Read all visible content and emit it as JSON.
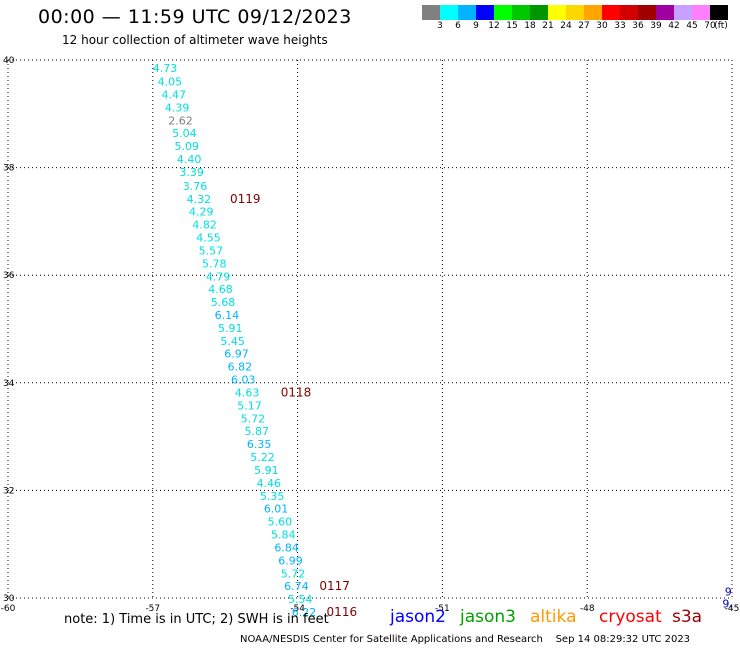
{
  "title": "00:00 — 11:59 UTC 09/12/2023",
  "subtitle": "12 hour collection of altimeter wave heights",
  "colorbar": {
    "unit": "(ft)",
    "ticks": [
      "3",
      "6",
      "9",
      "12",
      "15",
      "18",
      "21",
      "24",
      "27",
      "30",
      "33",
      "36",
      "39",
      "42",
      "45",
      "70"
    ],
    "colors": [
      "#808080",
      "#00ffff",
      "#00b4ff",
      "#0000ff",
      "#00ff00",
      "#00c800",
      "#009600",
      "#ffff00",
      "#ffd700",
      "#ffa500",
      "#ff0000",
      "#d20000",
      "#a00000",
      "#a000a0",
      "#c8a0ff",
      "#ff80ff",
      "#000000"
    ]
  },
  "chart_data": {
    "type": "scatter",
    "xlim": [
      -60,
      -45
    ],
    "ylim": [
      30,
      40
    ],
    "x_ticks": [
      -60,
      -57,
      -54,
      -51,
      -48,
      -45
    ],
    "y_ticks": [
      30,
      32,
      34,
      36,
      38,
      40
    ],
    "x_tick_labels": [
      "-60",
      "-57",
      "-54",
      "-51",
      "-48",
      "-45"
    ],
    "y_tick_labels": [
      "30",
      "32",
      "34",
      "36",
      "38",
      "40"
    ],
    "grid": true,
    "track_points": [
      {
        "lon": -57.0,
        "lat": 39.85,
        "label": "4.73",
        "color": "#00e0e0"
      },
      {
        "lon": -56.9,
        "lat": 39.6,
        "label": "4.05",
        "color": "#00e0e0"
      },
      {
        "lon": -56.82,
        "lat": 39.36,
        "label": "4.47",
        "color": "#00e0e0"
      },
      {
        "lon": -56.75,
        "lat": 39.12,
        "label": "4.39",
        "color": "#00e0e0"
      },
      {
        "lon": -56.68,
        "lat": 38.88,
        "label": "2.62",
        "color": "#808080"
      },
      {
        "lon": -56.6,
        "lat": 38.64,
        "label": "5.04",
        "color": "#00e0e0"
      },
      {
        "lon": -56.55,
        "lat": 38.4,
        "label": "5.09",
        "color": "#00e0e0"
      },
      {
        "lon": -56.5,
        "lat": 38.16,
        "label": "4.40",
        "color": "#00e0e0"
      },
      {
        "lon": -56.45,
        "lat": 37.92,
        "label": "3.39",
        "color": "#00e0e0"
      },
      {
        "lon": -56.38,
        "lat": 37.66,
        "label": "3.76",
        "color": "#00e0e0"
      },
      {
        "lon": -56.3,
        "lat": 37.42,
        "label": "4.32",
        "color": "#00e0e0"
      },
      {
        "lon": -56.25,
        "lat": 37.18,
        "label": "4.29",
        "color": "#00e0e0"
      },
      {
        "lon": -56.18,
        "lat": 36.94,
        "label": "4.82",
        "color": "#00e0e0"
      },
      {
        "lon": -56.1,
        "lat": 36.7,
        "label": "4.55",
        "color": "#00e0e0"
      },
      {
        "lon": -56.05,
        "lat": 36.46,
        "label": "5.57",
        "color": "#00e0e0"
      },
      {
        "lon": -55.98,
        "lat": 36.22,
        "label": "5.78",
        "color": "#00e0e0"
      },
      {
        "lon": -55.9,
        "lat": 35.98,
        "label": "4.79",
        "color": "#00e0e0"
      },
      {
        "lon": -55.85,
        "lat": 35.74,
        "label": "4.68",
        "color": "#00e0e0"
      },
      {
        "lon": -55.8,
        "lat": 35.5,
        "label": "5.68",
        "color": "#00e0e0"
      },
      {
        "lon": -55.72,
        "lat": 35.26,
        "label": "6.14",
        "color": "#00b4ff"
      },
      {
        "lon": -55.65,
        "lat": 35.02,
        "label": "5.91",
        "color": "#00e0e0"
      },
      {
        "lon": -55.6,
        "lat": 34.78,
        "label": "5.45",
        "color": "#00e0e0"
      },
      {
        "lon": -55.52,
        "lat": 34.54,
        "label": "6.97",
        "color": "#00b4ff"
      },
      {
        "lon": -55.45,
        "lat": 34.3,
        "label": "6.82",
        "color": "#00b4ff"
      },
      {
        "lon": -55.38,
        "lat": 34.06,
        "label": "6.03",
        "color": "#00b4ff"
      },
      {
        "lon": -55.3,
        "lat": 33.82,
        "label": "4.63",
        "color": "#00e0e0"
      },
      {
        "lon": -55.25,
        "lat": 33.58,
        "label": "5.17",
        "color": "#00e0e0"
      },
      {
        "lon": -55.18,
        "lat": 33.34,
        "label": "5.72",
        "color": "#00e0e0"
      },
      {
        "lon": -55.1,
        "lat": 33.1,
        "label": "5.87",
        "color": "#00e0e0"
      },
      {
        "lon": -55.05,
        "lat": 32.86,
        "label": "6.35",
        "color": "#00b4ff"
      },
      {
        "lon": -54.98,
        "lat": 32.62,
        "label": "5.22",
        "color": "#00e0e0"
      },
      {
        "lon": -54.9,
        "lat": 32.38,
        "label": "5.91",
        "color": "#00e0e0"
      },
      {
        "lon": -54.85,
        "lat": 32.14,
        "label": "4.46",
        "color": "#00e0e0"
      },
      {
        "lon": -54.78,
        "lat": 31.9,
        "label": "5.35",
        "color": "#00e0e0"
      },
      {
        "lon": -54.7,
        "lat": 31.66,
        "label": "6.01",
        "color": "#00b4ff"
      },
      {
        "lon": -54.62,
        "lat": 31.42,
        "label": "5.60",
        "color": "#00e0e0"
      },
      {
        "lon": -54.55,
        "lat": 31.18,
        "label": "5.84",
        "color": "#00e0e0"
      },
      {
        "lon": -54.48,
        "lat": 30.94,
        "label": "6.84",
        "color": "#00b4ff"
      },
      {
        "lon": -54.4,
        "lat": 30.7,
        "label": "6.99",
        "color": "#00b4ff"
      },
      {
        "lon": -54.35,
        "lat": 30.46,
        "label": "5.72",
        "color": "#00e0e0"
      },
      {
        "lon": -54.28,
        "lat": 30.22,
        "label": "6.74",
        "color": "#00b4ff"
      },
      {
        "lon": -54.2,
        "lat": 29.98,
        "label": "5.54",
        "color": "#00e0e0"
      },
      {
        "lon": -54.12,
        "lat": 29.74,
        "label": "6.22",
        "color": "#00b4ff"
      }
    ],
    "time_labels": [
      {
        "lon": -55.4,
        "lat": 37.42,
        "label": "0119",
        "color": "#800000"
      },
      {
        "lon": -54.35,
        "lat": 33.82,
        "label": "0118",
        "color": "#800000"
      },
      {
        "lon": -53.55,
        "lat": 30.22,
        "label": "0117",
        "color": "#800000"
      },
      {
        "lon": -53.4,
        "lat": 29.74,
        "label": "0116",
        "color": "#800000"
      }
    ],
    "edge_points": [
      {
        "lon": -45.15,
        "lat": 30.12,
        "label": "9",
        "color": "#0000c0"
      },
      {
        "lon": -45.2,
        "lat": 29.9,
        "label": "9.",
        "color": "#0000c0"
      }
    ]
  },
  "note": "note: 1) Time is in UTC; 2) SWH is in feet",
  "missions": [
    {
      "name": "jason2",
      "color": "#0000ff"
    },
    {
      "name": "jason3",
      "color": "#00a000"
    },
    {
      "name": "altika",
      "color": "#ff9900"
    },
    {
      "name": "cryosat",
      "color": "#ff0000"
    },
    {
      "name": "s3a",
      "color": "#990000"
    }
  ],
  "footer": "NOAA/NESDIS Center for Satellite Applications and Research    Sep 14 08:29:32 UTC 2023"
}
